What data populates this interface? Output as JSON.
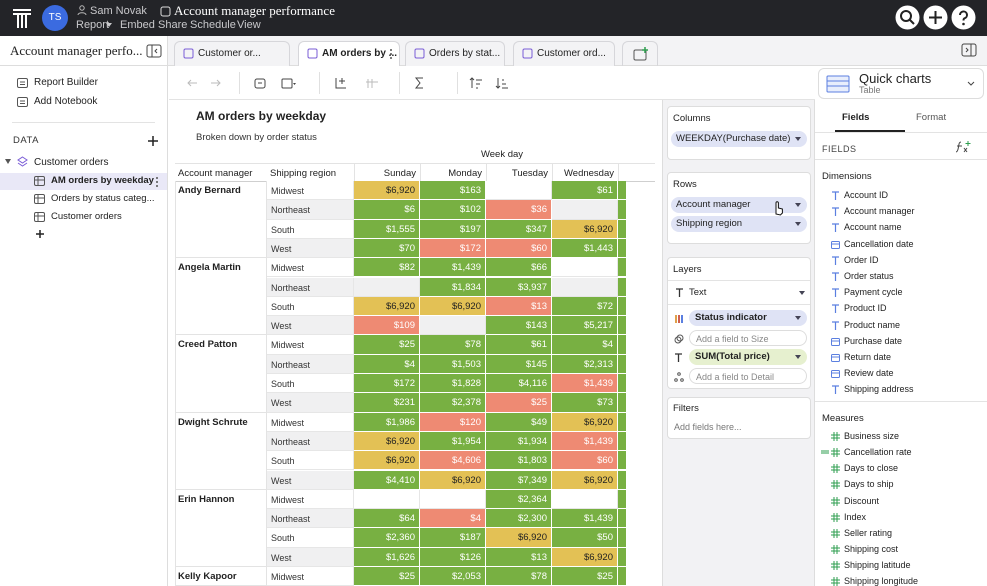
{
  "topbar": {
    "avatar": "TS",
    "user": "Sam Novak",
    "title": "Account manager performance",
    "menu": [
      "Report",
      "Embed",
      "Share",
      "Schedule",
      "View"
    ]
  },
  "sidebar": {
    "title": "Account manager perfo...",
    "actions": [
      "Report Builder",
      "Add Notebook"
    ],
    "section": "DATA",
    "dataset": "Customer orders",
    "items": [
      "AM orders by weekday",
      "Orders by status categ...",
      "Customer orders"
    ]
  },
  "tabs": [
    "Customer or...",
    "AM orders by ...",
    "Orders by stat...",
    "Customer ord..."
  ],
  "table": {
    "title": "AM orders by weekday",
    "subtitle": "Broken down by order status",
    "column_group": "Week day",
    "row_headers": [
      "Account manager",
      "Shipping region"
    ],
    "columns": [
      "Sunday",
      "Monday",
      "Tuesday",
      "Wednesday",
      "T"
    ],
    "groups": [
      {
        "name": "Andy Bernard",
        "rows": [
          {
            "region": "Midwest",
            "cells": [
              "$6,920",
              "$163",
              null,
              "$61"
            ],
            "colors": [
              "#e3c155",
              "#78b042",
              null,
              "#78b042"
            ]
          },
          {
            "region": "Northeast",
            "cells": [
              "$6",
              "$102",
              "$36",
              null
            ],
            "colors": [
              "#78b042",
              "#78b042",
              "#ee8a73",
              null
            ]
          },
          {
            "region": "South",
            "cells": [
              "$1,555",
              "$197",
              "$347",
              "$6,920"
            ],
            "colors": [
              "#78b042",
              "#78b042",
              "#78b042",
              "#e3c155"
            ]
          },
          {
            "region": "West",
            "cells": [
              "$70",
              "$172",
              "$60",
              "$1,443"
            ],
            "colors": [
              "#78b042",
              "#ee8a73",
              "#ee8a73",
              "#78b042"
            ]
          }
        ]
      },
      {
        "name": "Angela Martin",
        "rows": [
          {
            "region": "Midwest",
            "cells": [
              "$82",
              "$1,439",
              "$66",
              null
            ],
            "colors": [
              "#78b042",
              "#78b042",
              "#78b042",
              null
            ]
          },
          {
            "region": "Northeast",
            "cells": [
              null,
              "$1,834",
              "$3,937",
              null
            ],
            "colors": [
              null,
              "#78b042",
              "#78b042",
              null
            ]
          },
          {
            "region": "South",
            "cells": [
              "$6,920",
              "$6,920",
              "$13",
              "$72"
            ],
            "colors": [
              "#e3c155",
              "#e3c155",
              "#ee8a73",
              "#78b042"
            ]
          },
          {
            "region": "West",
            "cells": [
              "$109",
              null,
              "$143",
              "$5,217"
            ],
            "colors": [
              "#ee8a73",
              null,
              "#78b042",
              "#78b042"
            ]
          }
        ]
      },
      {
        "name": "Creed Patton",
        "rows": [
          {
            "region": "Midwest",
            "cells": [
              "$25",
              "$78",
              "$61",
              "$4"
            ],
            "colors": [
              "#78b042",
              "#78b042",
              "#78b042",
              "#78b042"
            ]
          },
          {
            "region": "Northeast",
            "cells": [
              "$4",
              "$1,503",
              "$145",
              "$2,313"
            ],
            "colors": [
              "#78b042",
              "#78b042",
              "#78b042",
              "#78b042"
            ]
          },
          {
            "region": "South",
            "cells": [
              "$172",
              "$1,828",
              "$4,116",
              "$1,439"
            ],
            "colors": [
              "#78b042",
              "#78b042",
              "#78b042",
              "#ee8a73"
            ]
          },
          {
            "region": "West",
            "cells": [
              "$231",
              "$2,378",
              "$25",
              "$73"
            ],
            "colors": [
              "#78b042",
              "#78b042",
              "#ee8a73",
              "#78b042"
            ]
          }
        ]
      },
      {
        "name": "Dwight Schrute",
        "rows": [
          {
            "region": "Midwest",
            "cells": [
              "$1,986",
              "$120",
              "$49",
              "$6,920"
            ],
            "colors": [
              "#78b042",
              "#ee8a73",
              "#78b042",
              "#e3c155"
            ]
          },
          {
            "region": "Northeast",
            "cells": [
              "$6,920",
              "$1,954",
              "$1,934",
              "$1,439"
            ],
            "colors": [
              "#e3c155",
              "#78b042",
              "#78b042",
              "#ee8a73"
            ]
          },
          {
            "region": "South",
            "cells": [
              "$6,920",
              "$4,606",
              "$1,803",
              "$60"
            ],
            "colors": [
              "#e3c155",
              "#ee8a73",
              "#78b042",
              "#ee8a73"
            ]
          },
          {
            "region": "West",
            "cells": [
              "$4,410",
              "$6,920",
              "$7,349",
              "$6,920"
            ],
            "colors": [
              "#78b042",
              "#e3c155",
              "#78b042",
              "#e3c155"
            ]
          }
        ]
      },
      {
        "name": "Erin Hannon",
        "rows": [
          {
            "region": "Midwest",
            "cells": [
              null,
              null,
              "$2,364",
              null
            ],
            "colors": [
              null,
              null,
              "#78b042",
              null
            ]
          },
          {
            "region": "Northeast",
            "cells": [
              "$64",
              "$4",
              "$2,300",
              "$1,439"
            ],
            "colors": [
              "#78b042",
              "#ee8a73",
              "#78b042",
              "#78b042"
            ]
          },
          {
            "region": "South",
            "cells": [
              "$2,360",
              "$187",
              "$6,920",
              "$50"
            ],
            "colors": [
              "#78b042",
              "#78b042",
              "#e3c155",
              "#78b042"
            ]
          },
          {
            "region": "West",
            "cells": [
              "$1,626",
              "$126",
              "$13",
              "$6,920"
            ],
            "colors": [
              "#78b042",
              "#78b042",
              "#78b042",
              "#e3c155"
            ]
          }
        ]
      },
      {
        "name": "Kelly Kapoor",
        "rows": [
          {
            "region": "Midwest",
            "cells": [
              "$25",
              "$2,053",
              "$78",
              "$25"
            ],
            "colors": [
              "#78b042",
              "#78b042",
              "#78b042",
              "#78b042"
            ]
          }
        ]
      }
    ]
  },
  "panel": {
    "columns": {
      "title": "Columns",
      "pills": [
        "WEEKDAY(Purchase date)"
      ]
    },
    "rows": {
      "title": "Rows",
      "pills": [
        "Account manager",
        "Shipping region"
      ]
    },
    "layers": {
      "title": "Layers",
      "mark": "Text",
      "encodings": [
        "Status indicator",
        "Add a field to Size",
        "SUM(Total price)",
        "Add a field to Detail"
      ]
    },
    "filters": {
      "title": "Filters",
      "placeholder": "Add fields here..."
    }
  },
  "fields": {
    "quick_charts": "Quick charts",
    "chart_type": "Table",
    "tabs": [
      "Fields",
      "Format"
    ],
    "header": "FIELDS",
    "dimensions_title": "Dimensions",
    "dimensions": [
      "Account ID",
      "Account manager",
      "Account name",
      "Cancellation date",
      "Order ID",
      "Order status",
      "Payment cycle",
      "Product ID",
      "Product name",
      "Purchase date",
      "Return date",
      "Review date",
      "Shipping address"
    ],
    "measures_title": "Measures",
    "measures": [
      "Business size",
      "Cancellation rate",
      "Days to close",
      "Days to ship",
      "Discount",
      "Index",
      "Seller rating",
      "Shipping cost",
      "Shipping latitude",
      "Shipping longitude"
    ]
  }
}
